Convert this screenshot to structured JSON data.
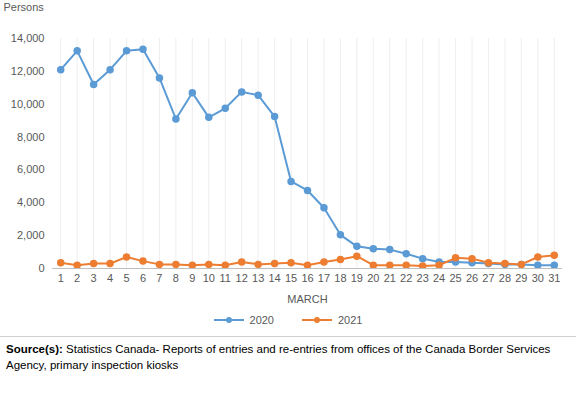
{
  "chart_data": {
    "type": "line",
    "y_label": "Persons",
    "x_label": "MARCH",
    "x": [
      1,
      2,
      3,
      4,
      5,
      6,
      7,
      8,
      9,
      10,
      11,
      12,
      13,
      14,
      15,
      16,
      17,
      18,
      19,
      20,
      21,
      22,
      23,
      24,
      25,
      26,
      27,
      28,
      29,
      30,
      31
    ],
    "series": [
      {
        "name": "2020",
        "color": "#5b9bd5",
        "marker": "circle",
        "line_style": "solid",
        "values": [
          12100,
          13250,
          11200,
          12100,
          13250,
          13350,
          11600,
          9100,
          10700,
          9200,
          9750,
          10750,
          10550,
          9250,
          5300,
          4750,
          3700,
          2050,
          1350,
          1200,
          1150,
          900,
          600,
          400,
          400,
          350,
          300,
          250,
          250,
          200,
          200
        ]
      },
      {
        "name": "2021",
        "color": "#ed7d31",
        "marker": "circle",
        "line_style": "solid",
        "values": [
          350,
          200,
          300,
          300,
          700,
          450,
          250,
          250,
          200,
          250,
          200,
          400,
          250,
          300,
          350,
          200,
          400,
          550,
          750,
          200,
          200,
          200,
          150,
          200,
          650,
          600,
          350,
          300,
          250,
          700,
          800
        ]
      }
    ],
    "xlim": [
      0.5,
      31.5
    ],
    "xticks": [
      1,
      2,
      3,
      4,
      5,
      6,
      7,
      8,
      9,
      10,
      11,
      12,
      13,
      14,
      15,
      16,
      17,
      18,
      19,
      20,
      21,
      22,
      23,
      24,
      25,
      26,
      27,
      28,
      29,
      30,
      31
    ],
    "ylim": [
      0,
      14000
    ],
    "yticks": [
      0,
      {
        "value": 2000,
        "label": "2,000"
      },
      {
        "value": 4000,
        "label": "4,000"
      },
      {
        "value": 6000,
        "label": "6,000"
      },
      {
        "value": 8000,
        "label": "8,000"
      },
      {
        "value": 10000,
        "label": "10,000"
      },
      {
        "value": 12000,
        "label": "12,000"
      },
      {
        "value": 14000,
        "label": "14,000"
      }
    ],
    "grid": true,
    "legend": "bottom",
    "source": {
      "label": "Source(s):",
      "text": "Statistics Canada- Reports of entries and re-entries from offices of the Canada Border Services Agency, primary inspection kiosks"
    }
  }
}
